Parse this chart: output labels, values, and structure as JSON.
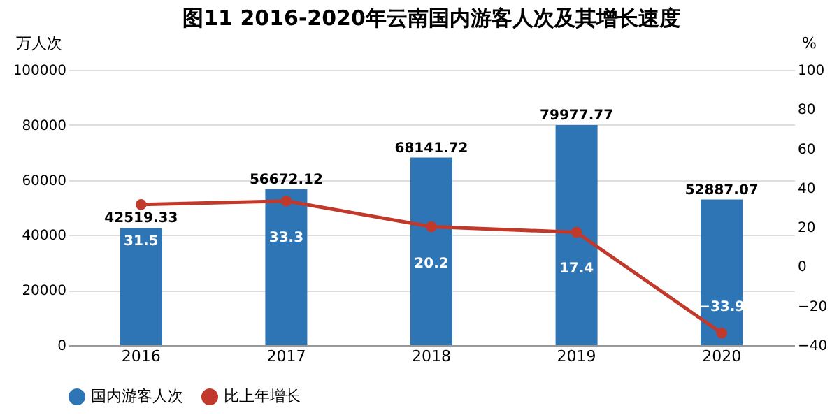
{
  "chart_data": {
    "type": "bar",
    "title": "图11  2016-2020年云南国内游客人次及其增长速度",
    "ylabel": "万人次",
    "y2label": "%",
    "categories": [
      "2016",
      "2017",
      "2018",
      "2019",
      "2020"
    ],
    "series": [
      {
        "name": "国内游客人次",
        "color": "#2e75b6",
        "values": [
          42519.33,
          56672.12,
          68141.72,
          79977.77,
          52887.07
        ]
      },
      {
        "name": "比上年增长",
        "type": "line",
        "axis": "y2",
        "color": "#c0392b",
        "values": [
          31.5,
          33.3,
          20.2,
          17.4,
          -33.9
        ]
      }
    ],
    "ylim": [
      0,
      100000
    ],
    "yticks": [
      0,
      20000,
      40000,
      60000,
      80000,
      100000
    ],
    "y2lim": [
      -40,
      100
    ],
    "y2ticks": [
      -40,
      -20,
      0,
      20,
      40,
      60,
      80,
      100
    ],
    "data_labels": true,
    "grid": "y",
    "legend": "bottom",
    "marker": "circle",
    "line_style": "solid"
  }
}
